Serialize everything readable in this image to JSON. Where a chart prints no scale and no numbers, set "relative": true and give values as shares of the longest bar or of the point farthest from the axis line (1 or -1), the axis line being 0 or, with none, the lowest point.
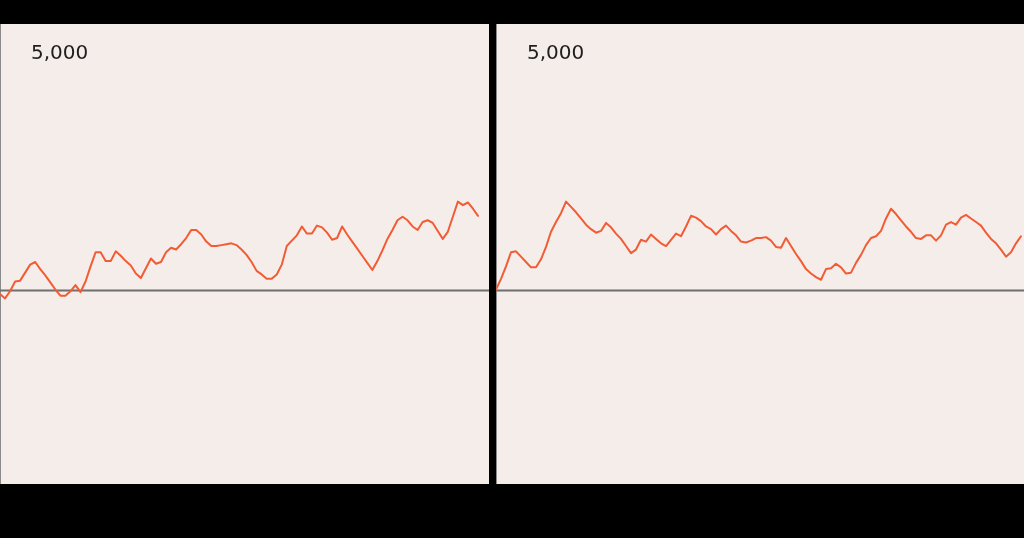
{
  "chart_data": [
    {
      "type": "line",
      "relative": true,
      "marker": "none",
      "tick_labels": false,
      "color": "#f25c35",
      "annotations": [
        "5,000"
      ],
      "categories": [
        null,
        null,
        null,
        null,
        null,
        null,
        null,
        null,
        null,
        null,
        null,
        null,
        null,
        null,
        null,
        null,
        null,
        null,
        null,
        null,
        null,
        null,
        null,
        null,
        null,
        null,
        null,
        null,
        null,
        null,
        null,
        null,
        null,
        null,
        null,
        null,
        null,
        null,
        null,
        null,
        null,
        null,
        null,
        null,
        null,
        null,
        null,
        null,
        null,
        null,
        null,
        null,
        null,
        null,
        null,
        null,
        null,
        null,
        null,
        null,
        null,
        null,
        null,
        null,
        null,
        null,
        null,
        null,
        null,
        null,
        null,
        null,
        null,
        null,
        null,
        null,
        null,
        null,
        null,
        null,
        null,
        null,
        null,
        null,
        null,
        null,
        null,
        null,
        null,
        null,
        null,
        null,
        null,
        null,
        null,
        null
      ],
      "values": [
        -0.04,
        -0.09,
        -0.01,
        0.1,
        0.11,
        0.2,
        0.29,
        0.32,
        0.24,
        0.17,
        0.09,
        0.01,
        -0.06,
        -0.06,
        -0.01,
        0.06,
        -0.02,
        0.1,
        0.27,
        0.43,
        0.43,
        0.33,
        0.33,
        0.44,
        0.39,
        0.33,
        0.28,
        0.19,
        0.14,
        0.25,
        0.36,
        0.3,
        0.32,
        0.43,
        0.48,
        0.46,
        0.52,
        0.59,
        0.68,
        0.68,
        0.63,
        0.55,
        0.5,
        0.5,
        0.51,
        0.52,
        0.53,
        0.51,
        0.46,
        0.4,
        0.32,
        0.22,
        0.18,
        0.13,
        0.13,
        0.18,
        0.29,
        0.5,
        0.56,
        0.62,
        0.72,
        0.64,
        0.64,
        0.73,
        0.71,
        0.65,
        0.57,
        0.59,
        0.72,
        0.63,
        0.55,
        0.47,
        0.39,
        0.31,
        0.23,
        0.33,
        0.45,
        0.58,
        0.68,
        0.79,
        0.83,
        0.79,
        0.72,
        0.68,
        0.77,
        0.79,
        0.76,
        0.67,
        0.58,
        0.66,
        0.83,
        1,
        0.96,
        0.99,
        0.92,
        0.84
      ]
    },
    {
      "type": "line",
      "relative": true,
      "marker": "none",
      "tick_labels": false,
      "color": "#f25c35",
      "annotations": [
        "5,000"
      ],
      "categories": [
        null,
        null,
        null,
        null,
        null,
        null,
        null,
        null,
        null,
        null,
        null,
        null,
        null,
        null,
        null,
        null,
        null,
        null,
        null,
        null,
        null,
        null,
        null,
        null,
        null,
        null,
        null,
        null,
        null,
        null,
        null,
        null,
        null,
        null,
        null,
        null,
        null,
        null,
        null,
        null,
        null,
        null,
        null,
        null,
        null,
        null,
        null,
        null,
        null,
        null,
        null,
        null,
        null,
        null,
        null,
        null,
        null,
        null,
        null,
        null,
        null,
        null,
        null,
        null,
        null,
        null,
        null,
        null,
        null,
        null,
        null,
        null,
        null,
        null,
        null,
        null,
        null,
        null,
        null,
        null,
        null,
        null,
        null,
        null,
        null,
        null,
        null,
        null,
        null,
        null,
        null,
        null,
        null,
        null,
        null,
        null,
        null,
        null,
        null,
        null,
        null,
        null,
        null,
        null,
        null,
        null
      ],
      "values": [
        0.01,
        0.13,
        0.27,
        0.43,
        0.44,
        0.38,
        0.32,
        0.26,
        0.26,
        0.35,
        0.49,
        0.66,
        0.77,
        0.87,
        1,
        0.94,
        0.88,
        0.81,
        0.74,
        0.69,
        0.65,
        0.67,
        0.76,
        0.71,
        0.64,
        0.58,
        0.5,
        0.42,
        0.46,
        0.57,
        0.55,
        0.63,
        0.58,
        0.53,
        0.5,
        0.57,
        0.64,
        0.61,
        0.72,
        0.84,
        0.82,
        0.78,
        0.72,
        0.69,
        0.63,
        0.69,
        0.73,
        0.67,
        0.62,
        0.55,
        0.54,
        0.56,
        0.59,
        0.59,
        0.6,
        0.56,
        0.49,
        0.48,
        0.59,
        0.5,
        0.41,
        0.33,
        0.24,
        0.19,
        0.15,
        0.12,
        0.24,
        0.25,
        0.3,
        0.26,
        0.19,
        0.2,
        0.31,
        0.4,
        0.51,
        0.59,
        0.61,
        0.67,
        0.81,
        0.92,
        0.86,
        0.79,
        0.72,
        0.66,
        0.59,
        0.58,
        0.62,
        0.62,
        0.56,
        0.62,
        0.74,
        0.77,
        0.74,
        0.82,
        0.85,
        0.81,
        0.77,
        0.73,
        0.65,
        0.58,
        0.53,
        0.46,
        0.38,
        0.43,
        0.53,
        0.61
      ]
    }
  ]
}
